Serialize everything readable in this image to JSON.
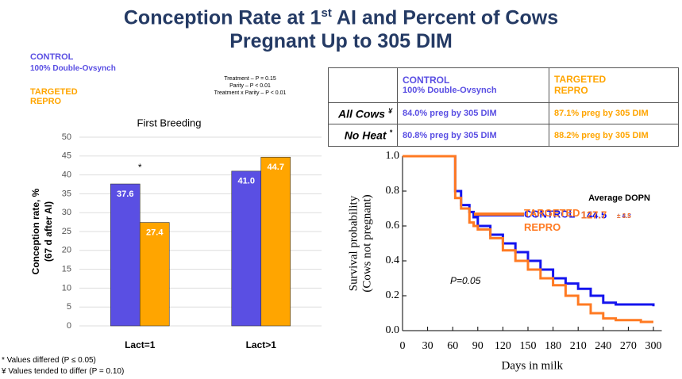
{
  "title": [
    "Conception Rate at 1",
    "st",
    " AI and Percent of Cows",
    "Pregnant Up to 305 DIM"
  ],
  "chart_data": [
    {
      "type": "bar",
      "title": "First Breeding",
      "ylabel": [
        "Conception rate, %",
        "(67 d after AI)"
      ],
      "categories": [
        "Lact=1",
        "Lact>1"
      ],
      "series": [
        {
          "name": "CONTROL",
          "color": "#5a4fe3",
          "values": [
            37.6,
            41.0
          ],
          "value_labels": [
            "37.6",
            "41.0"
          ]
        },
        {
          "name": "TARGETED REPRO",
          "color": "#ffa500",
          "values": [
            27.4,
            44.7
          ]
        }
      ],
      "ylim": [
        0,
        50
      ],
      "yticks": [
        0,
        5,
        10,
        15,
        20,
        25,
        30,
        35,
        40,
        45,
        50
      ],
      "grid": true,
      "annotations": [
        "*"
      ],
      "stats": [
        "Treatment – P = 0.15",
        "Parity – P < 0.01",
        "Treatment x Parity – P < 0.01"
      ],
      "legend_note": "100% Double-Ovsynch"
    },
    {
      "type": "line",
      "step": true,
      "ylabel": [
        "Survival probability",
        "(Cows not pregnant)"
      ],
      "xlabel": "Days in milk",
      "x": [
        0,
        62,
        63,
        70,
        80,
        85,
        90,
        105,
        120,
        135,
        150,
        165,
        180,
        195,
        210,
        225,
        240,
        255,
        270,
        285,
        300
      ],
      "series": [
        {
          "name": "CONTROL",
          "color": "#1414ee",
          "values": [
            1,
            1,
            0.8,
            0.72,
            0.68,
            0.65,
            0.6,
            0.55,
            0.5,
            0.45,
            0.4,
            0.35,
            0.3,
            0.27,
            0.24,
            0.2,
            0.16,
            0.15,
            0.15,
            0.15,
            0.14
          ]
        },
        {
          "name": "TARGETED REPRO",
          "color": "#ff7a22",
          "values": [
            1,
            1,
            0.76,
            0.7,
            0.62,
            0.6,
            0.58,
            0.53,
            0.46,
            0.4,
            0.35,
            0.3,
            0.26,
            0.2,
            0.15,
            0.1,
            0.07,
            0.06,
            0.06,
            0.05,
            0.05
          ]
        }
      ],
      "xlim": [
        0,
        310
      ],
      "ylim": [
        0,
        1
      ],
      "xticks": [
        0,
        30,
        60,
        90,
        120,
        150,
        180,
        210,
        240,
        270,
        300
      ],
      "yticks": [
        {
          "value": 0,
          "label": "0.0"
        },
        0.2,
        0.4,
        0.6,
        0.8,
        {
          "value": 1,
          "label": "1.0"
        }
      ],
      "annotations": {
        "header": "Average DOPN",
        "control_mean": "144.5",
        "control_se": "± 4.3",
        "targeted_mean": "127.7",
        "targeted_se": "± 3.5",
        "p": "P=0.05"
      }
    }
  ],
  "table": {
    "columns": [
      {
        "name": "CONTROL",
        "note": "100% Double-Ovsynch"
      },
      {
        "name": "TARGETED REPRO"
      }
    ],
    "rows": [
      {
        "label": "All Cows",
        "mark": "¥",
        "cells": [
          "84.0% preg by 305 DIM",
          "87.1% preg by 305 DIM"
        ]
      },
      {
        "label": "No Heat",
        "mark": "*",
        "cells": [
          "80.8% preg by 305 DIM",
          "88.2% preg by 305 DIM"
        ]
      }
    ]
  },
  "footnotes": [
    "* Values differed (P ≤ 0.05)",
    "¥ Values tended to differ (P = 0.10)"
  ]
}
